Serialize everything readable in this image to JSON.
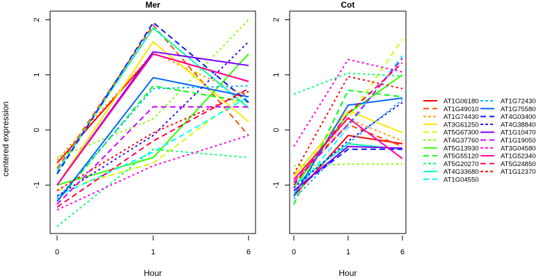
{
  "chart_data": {
    "type": "line",
    "ylabel": "centered expression",
    "xlabel": "Hour",
    "x_categories": [
      "0",
      "1",
      "6"
    ],
    "ylim": [
      -2.0,
      2.2
    ],
    "yticks": [
      -1,
      0,
      1,
      2
    ],
    "grid": false,
    "legend_position": "right",
    "genes": [
      {
        "name": "AT1G06180",
        "color": "#FF0000",
        "dash": "solid"
      },
      {
        "name": "AT1G49010",
        "color": "#FF4D00",
        "dash": "dashed"
      },
      {
        "name": "AT1G74430",
        "color": "#FF9900",
        "dash": "dotted"
      },
      {
        "name": "AT3G61250",
        "color": "#FFE500",
        "dash": "solid"
      },
      {
        "name": "AT5G67300",
        "color": "#CCFF00",
        "dash": "dashed"
      },
      {
        "name": "AT4G37760",
        "color": "#80FF00",
        "dash": "dotted"
      },
      {
        "name": "AT5G13930",
        "color": "#33FF00",
        "dash": "solid"
      },
      {
        "name": "AT5G55120",
        "color": "#00FF19",
        "dash": "dashed"
      },
      {
        "name": "AT5G20270",
        "color": "#00FF66",
        "dash": "dotted"
      },
      {
        "name": "AT4G33680",
        "color": "#00FFB2",
        "dash": "solid"
      },
      {
        "name": "AT1G04550",
        "color": "#00FFFF",
        "dash": "dashed"
      },
      {
        "name": "AT1G72430",
        "color": "#00B3FF",
        "dash": "dotted"
      },
      {
        "name": "AT1G75580",
        "color": "#0066FF",
        "dash": "solid"
      },
      {
        "name": "AT4G03400",
        "color": "#001AFF",
        "dash": "dashed"
      },
      {
        "name": "AT4G38840",
        "color": "#3300FF",
        "dash": "dotted"
      },
      {
        "name": "AT1G10470",
        "color": "#7F00FF",
        "dash": "solid"
      },
      {
        "name": "AT1G19050",
        "color": "#CC00FF",
        "dash": "dashed"
      },
      {
        "name": "AT3G04580",
        "color": "#FF00E6",
        "dash": "dotted"
      },
      {
        "name": "AT1G52340",
        "color": "#FF0099",
        "dash": "solid"
      },
      {
        "name": "AT5G24850",
        "color": "#FF004D",
        "dash": "dashed"
      },
      {
        "name": "AT1G12370",
        "color": "#FF0000",
        "dash": "dotted"
      }
    ],
    "panels": [
      {
        "title": "Mer",
        "series": [
          {
            "name": "AT1G06180",
            "values": [
              -0.6,
              1.38,
              0.88
            ]
          },
          {
            "name": "AT1G49010",
            "values": [
              -0.7,
              1.9,
              -0.1
            ]
          },
          {
            "name": "AT1G74430",
            "values": [
              -0.55,
              1.4,
              0.6
            ]
          },
          {
            "name": "AT3G61250",
            "values": [
              -1.0,
              1.6,
              0.15
            ]
          },
          {
            "name": "AT5G67300",
            "values": [
              -1.1,
              -0.6,
              0.7
            ]
          },
          {
            "name": "AT4G37760",
            "values": [
              -0.5,
              0.2,
              2.0
            ]
          },
          {
            "name": "AT5G13930",
            "values": [
              -1.0,
              -0.5,
              1.38
            ]
          },
          {
            "name": "AT5G55120",
            "values": [
              -1.3,
              0.8,
              0.5
            ]
          },
          {
            "name": "AT5G20270",
            "values": [
              -1.75,
              -0.35,
              -0.5
            ]
          },
          {
            "name": "AT4G33680",
            "values": [
              -0.75,
              1.85,
              0.4
            ]
          },
          {
            "name": "AT1G04550",
            "values": [
              -1.2,
              -0.4,
              0.6
            ]
          },
          {
            "name": "AT1G72430",
            "values": [
              -1.25,
              0.75,
              0.8
            ]
          },
          {
            "name": "AT1G75580",
            "values": [
              -1.3,
              0.95,
              0.6
            ]
          },
          {
            "name": "AT4G03400",
            "values": [
              -0.8,
              1.95,
              0.5
            ]
          },
          {
            "name": "AT4G38840",
            "values": [
              -1.2,
              -0.1,
              1.6
            ]
          },
          {
            "name": "AT1G10470",
            "values": [
              -1.0,
              1.42,
              1.17
            ]
          },
          {
            "name": "AT1G19050",
            "values": [
              -1.35,
              0.42,
              0.42
            ]
          },
          {
            "name": "AT3G04580",
            "values": [
              -1.45,
              -0.65,
              -0.1
            ]
          },
          {
            "name": "AT1G52340",
            "values": [
              -1.0,
              1.38,
              0.88
            ]
          },
          {
            "name": "AT5G24850",
            "values": [
              -1.4,
              -0.2,
              0.75
            ]
          },
          {
            "name": "AT1G12370",
            "values": [
              -1.1,
              -0.05,
              0.7
            ]
          }
        ]
      },
      {
        "title": "Cot",
        "series": [
          {
            "name": "AT1G06180",
            "values": [
              -1.2,
              -0.1,
              -0.25
            ]
          },
          {
            "name": "AT1G49010",
            "values": [
              -0.9,
              0.1,
              -0.3
            ]
          },
          {
            "name": "AT1G74430",
            "values": [
              -0.95,
              0.2,
              -0.2
            ]
          },
          {
            "name": "AT3G61250",
            "values": [
              -0.85,
              0.35,
              -0.05
            ]
          },
          {
            "name": "AT5G67300",
            "values": [
              -0.8,
              0.2,
              1.65
            ]
          },
          {
            "name": "AT4G37760",
            "values": [
              -0.65,
              -0.62,
              -0.62
            ]
          },
          {
            "name": "AT5G13930",
            "values": [
              -1.05,
              0.3,
              1.0
            ]
          },
          {
            "name": "AT5G55120",
            "values": [
              -1.35,
              0.72,
              0.6
            ]
          },
          {
            "name": "AT5G20270",
            "values": [
              0.65,
              1.03,
              0.98
            ]
          },
          {
            "name": "AT4G33680",
            "values": [
              -1.0,
              -0.25,
              -0.35
            ]
          },
          {
            "name": "AT1G04550",
            "values": [
              -1.15,
              0.05,
              1.35
            ]
          },
          {
            "name": "AT1G72430",
            "values": [
              -1.25,
              -0.25,
              0.55
            ]
          },
          {
            "name": "AT1G75580",
            "values": [
              -1.2,
              0.45,
              0.58
            ]
          },
          {
            "name": "AT4G03400",
            "values": [
              -1.1,
              -0.35,
              -0.35
            ]
          },
          {
            "name": "AT4G38840",
            "values": [
              -1.05,
              -0.2,
              0.5
            ]
          },
          {
            "name": "AT1G10470",
            "values": [
              -1.1,
              -0.3,
              -0.33
            ]
          },
          {
            "name": "AT1G19050",
            "values": [
              -0.95,
              0.1,
              1.3
            ]
          },
          {
            "name": "AT3G04580",
            "values": [
              -0.3,
              1.28,
              1.05
            ]
          },
          {
            "name": "AT1G52340",
            "values": [
              -0.9,
              0.22,
              -0.52
            ]
          },
          {
            "name": "AT5G24850",
            "values": [
              -1.0,
              0.3,
              1.22
            ]
          },
          {
            "name": "AT1G12370",
            "values": [
              -0.8,
              0.97,
              0.75
            ]
          }
        ]
      }
    ]
  }
}
